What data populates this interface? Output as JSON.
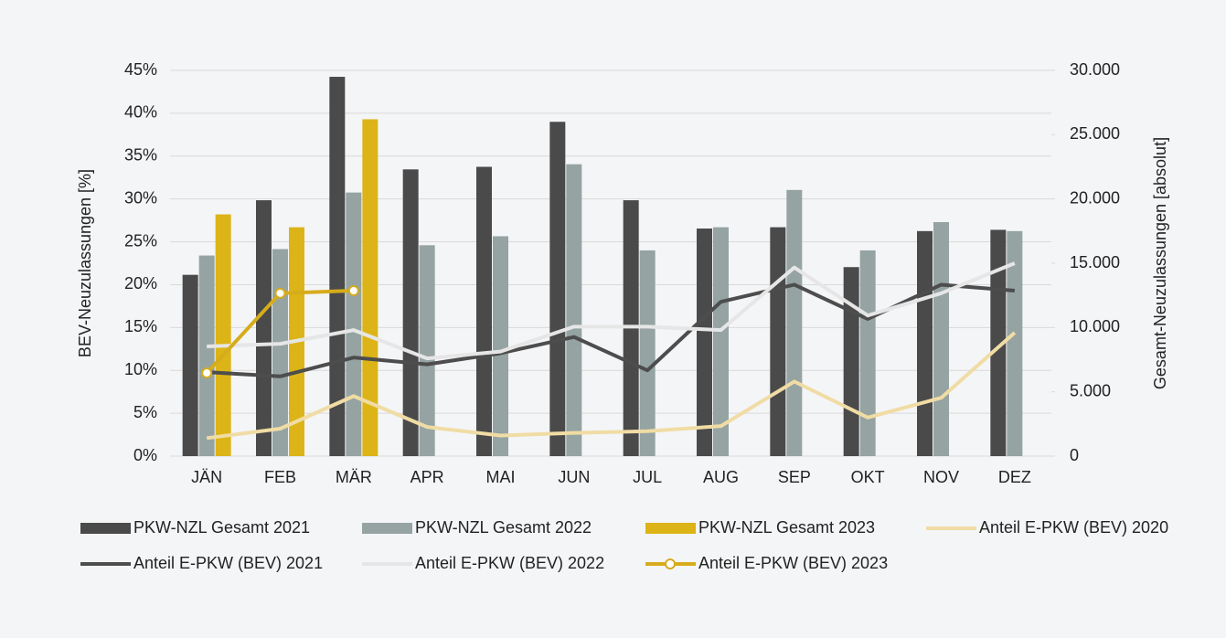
{
  "chart_data": {
    "type": "bar",
    "categories": [
      "JÄN",
      "FEB",
      "MÄR",
      "APR",
      "MAI",
      "JUN",
      "JUL",
      "AUG",
      "SEP",
      "OKT",
      "NOV",
      "DEZ"
    ],
    "ylabel": "BEV-Neuzulassungen [%]",
    "y2label": "Gesamt-Neuzulassungen [absolut]",
    "ylim": [
      0,
      45
    ],
    "yticks": [
      {
        "value": 0,
        "label": "0%"
      },
      {
        "value": 5,
        "label": "5%"
      },
      {
        "value": 10,
        "label": "10%"
      },
      {
        "value": 15,
        "label": "15%"
      },
      {
        "value": 20,
        "label": "20%"
      },
      {
        "value": 25,
        "label": "25%"
      },
      {
        "value": 30,
        "label": "30%"
      },
      {
        "value": 35,
        "label": "35%"
      },
      {
        "value": 40,
        "label": "40%"
      },
      {
        "value": 45,
        "label": "45%"
      }
    ],
    "y2lim": [
      0,
      30000
    ],
    "y2ticks": [
      0,
      {
        "value": 5000,
        "label": "5.000"
      },
      {
        "value": 10000,
        "label": "10.000"
      },
      {
        "value": 15000,
        "label": "15.000"
      },
      {
        "value": 20000,
        "label": "20.000"
      },
      {
        "value": 25000,
        "label": "25.000"
      },
      {
        "value": 30000,
        "label": "30.000"
      }
    ],
    "grid": true,
    "legend": "bottom",
    "series": [
      {
        "name": "PKW-NZL Gesamt 2021",
        "type": "bar",
        "axis": "y2",
        "color": "#4a4a4a",
        "values": [
          14100,
          19900,
          29500,
          22300,
          22500,
          26000,
          19900,
          17700,
          17800,
          14700,
          17500,
          17600
        ]
      },
      {
        "name": "PKW-NZL Gesamt 2022",
        "type": "bar",
        "axis": "y2",
        "color": "#95a3a2",
        "values": [
          15600,
          16100,
          20500,
          16400,
          17100,
          22700,
          16000,
          17800,
          20700,
          16000,
          18200,
          17500
        ]
      },
      {
        "name": "PKW-NZL Gesamt 2023",
        "type": "bar",
        "axis": "y2",
        "color": "#dcb417",
        "values": [
          18800,
          17800,
          26200,
          null,
          null,
          null,
          null,
          null,
          null,
          null,
          null,
          null
        ]
      },
      {
        "name": "Anteil E-PKW (BEV) 2020",
        "type": "line",
        "color": "#f0dca4",
        "values": [
          2.1,
          3.2,
          7.0,
          3.4,
          2.4,
          2.7,
          2.9,
          3.5,
          8.7,
          4.5,
          6.8,
          14.4
        ]
      },
      {
        "name": "Anteil E-PKW (BEV) 2021",
        "type": "line",
        "color": "#4d4d4d",
        "values": [
          9.8,
          9.3,
          11.5,
          10.7,
          12.0,
          13.9,
          10.0,
          18.0,
          20.0,
          16.0,
          20.0,
          19.3
        ]
      },
      {
        "name": "Anteil E-PKW (BEV) 2022",
        "type": "line",
        "color": "#e6e6e6",
        "values": [
          12.8,
          13.1,
          14.7,
          11.4,
          12.2,
          15.1,
          15.1,
          14.7,
          22.0,
          16.4,
          19.0,
          22.5
        ]
      },
      {
        "name": "Anteil E-PKW (BEV) 2023",
        "type": "line",
        "color": "#d6ac1c",
        "marker": true,
        "values": [
          9.7,
          19.0,
          19.3,
          null,
          null,
          null,
          null,
          null,
          null,
          null,
          null,
          null
        ]
      }
    ]
  }
}
